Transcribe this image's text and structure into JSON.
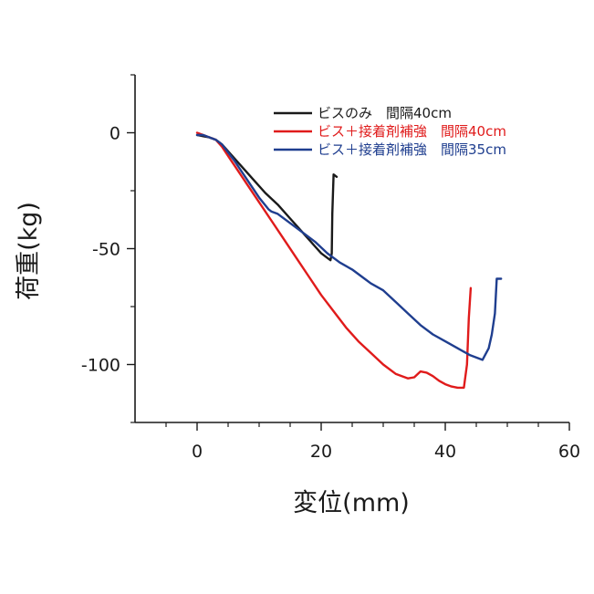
{
  "chart_data": {
    "type": "line",
    "title": "",
    "xlabel": "変位(mm)",
    "ylabel": "荷重(kg)",
    "xlim": [
      -10,
      60
    ],
    "ylim": [
      -125,
      25
    ],
    "xticks": [
      0,
      20,
      40,
      60
    ],
    "yticks": [
      0,
      -50,
      -100
    ],
    "xtick_labels": [
      "0",
      "20",
      "40",
      "60"
    ],
    "ytick_labels": [
      "0",
      "-50",
      "-100"
    ],
    "grid": false,
    "legend_position": "top-right",
    "series": [
      {
        "name": "ビスのみ　間隔40cm",
        "color": "#1a1a1a",
        "x": [
          0,
          1,
          2,
          3,
          4,
          5,
          7,
          9,
          11,
          13,
          15,
          17,
          19,
          20,
          21,
          21.5,
          21.7,
          21.8,
          22.0,
          22.5
        ],
        "y": [
          -1,
          -1.5,
          -2,
          -3,
          -5,
          -8,
          -14,
          -20,
          -26,
          -31,
          -37,
          -43,
          -49,
          -52,
          -54,
          -55,
          -52,
          -35,
          -18,
          -19
        ]
      },
      {
        "name": "ビス＋接着剤補強　間隔40cm",
        "color": "#e01b1b",
        "x": [
          0,
          1,
          2,
          3,
          4,
          6,
          8,
          10,
          12,
          14,
          16,
          18,
          20,
          22,
          24,
          26,
          28,
          30,
          32,
          34,
          35,
          36,
          37,
          38,
          39,
          40,
          41,
          42,
          43,
          43.5,
          43.8,
          44.1
        ],
        "y": [
          0,
          -1,
          -2,
          -3,
          -6,
          -14,
          -22,
          -30,
          -38,
          -46,
          -54,
          -62,
          -70,
          -77,
          -84,
          -90,
          -95,
          -100,
          -104,
          -106,
          -105.5,
          -103,
          -103.5,
          -105,
          -107,
          -108.5,
          -109.5,
          -110,
          -110,
          -100,
          -80,
          -67
        ]
      },
      {
        "name": "ビス＋接着剤補強　間隔35cm",
        "color": "#1f3e8f",
        "x": [
          0,
          1,
          2,
          3,
          4,
          6,
          8,
          10,
          11.5,
          12,
          13,
          15,
          17,
          19,
          21,
          23,
          25,
          27,
          28,
          30,
          32,
          34,
          36,
          38,
          40,
          42,
          44,
          46,
          47,
          47.5,
          48,
          48.3,
          49
        ],
        "y": [
          -1,
          -1,
          -2,
          -3,
          -5,
          -12,
          -20,
          -28,
          -33,
          -34,
          -35,
          -39,
          -43,
          -47,
          -52,
          -56,
          -59,
          -63,
          -65,
          -68,
          -73,
          -78,
          -83,
          -87,
          -90,
          -93,
          -96,
          -98,
          -93,
          -87,
          -78,
          -63,
          -63
        ]
      }
    ]
  }
}
